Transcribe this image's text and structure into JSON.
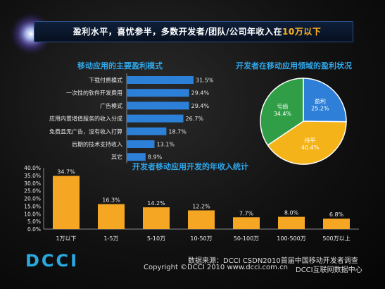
{
  "header": {
    "title_main": "盈利水平，喜忧参半，多数开发者/团队/公司年收入在",
    "title_highlight": "10万以下"
  },
  "chart_data": [
    {
      "type": "bar",
      "orientation": "horizontal",
      "title": "移动应用的主要盈利模式",
      "categories": [
        "下载付费模式",
        "一次性的软件开发费用",
        "广告模式",
        "应用内置增值服务的收入分成",
        "免费且无广告，没有收入打算",
        "后期的技术支持收入",
        "其它"
      ],
      "values": [
        31.5,
        29.4,
        29.4,
        26.7,
        18.7,
        13.1,
        8.9
      ],
      "value_labels": [
        "31.5%",
        "29.4%",
        "29.4%",
        "26.7%",
        "18.7%",
        "13.1%",
        "8.9%"
      ],
      "color": "#2d80d8"
    },
    {
      "type": "pie",
      "title": "开发者在移动应用领域的盈利状况",
      "slices": [
        {
          "label": "盈利",
          "value": 25.2,
          "text": "25.2%",
          "color": "#2e7fd8"
        },
        {
          "label": "持平",
          "value": 40.4,
          "text": "40.4%",
          "color": "#f5b31a"
        },
        {
          "label": "亏损",
          "value": 34.4,
          "text": "34.4%",
          "color": "#2f9e46"
        }
      ]
    },
    {
      "type": "bar",
      "title": "开发者移动应用开发的年收入统计",
      "categories": [
        "1万以下",
        "1-5万",
        "5-10万",
        "10-50万",
        "50-100万",
        "100-500万",
        "500万以上"
      ],
      "values": [
        34.7,
        16.3,
        14.2,
        12.2,
        7.7,
        8.0,
        6.8
      ],
      "value_labels": [
        "34.7%",
        "16.3%",
        "14.2%",
        "12.2%",
        "7.7%",
        "8.0%",
        "6.8%"
      ],
      "yticks": [
        "0.0%",
        "5.0%",
        "10.0%",
        "15.0%",
        "20.0%",
        "25.0%",
        "30.0%",
        "35.0%",
        "40.0%"
      ],
      "ylim": [
        0,
        40
      ],
      "color": "#f5a623"
    }
  ],
  "footer": {
    "source": "数据来源：DCCI CSDN2010首届中国移动开发者调查",
    "copyright": "Copyright ©DCCI 2010   www.dcci.com.cn",
    "org": "DCCI互联网数据中心",
    "logo": "DCCI"
  }
}
